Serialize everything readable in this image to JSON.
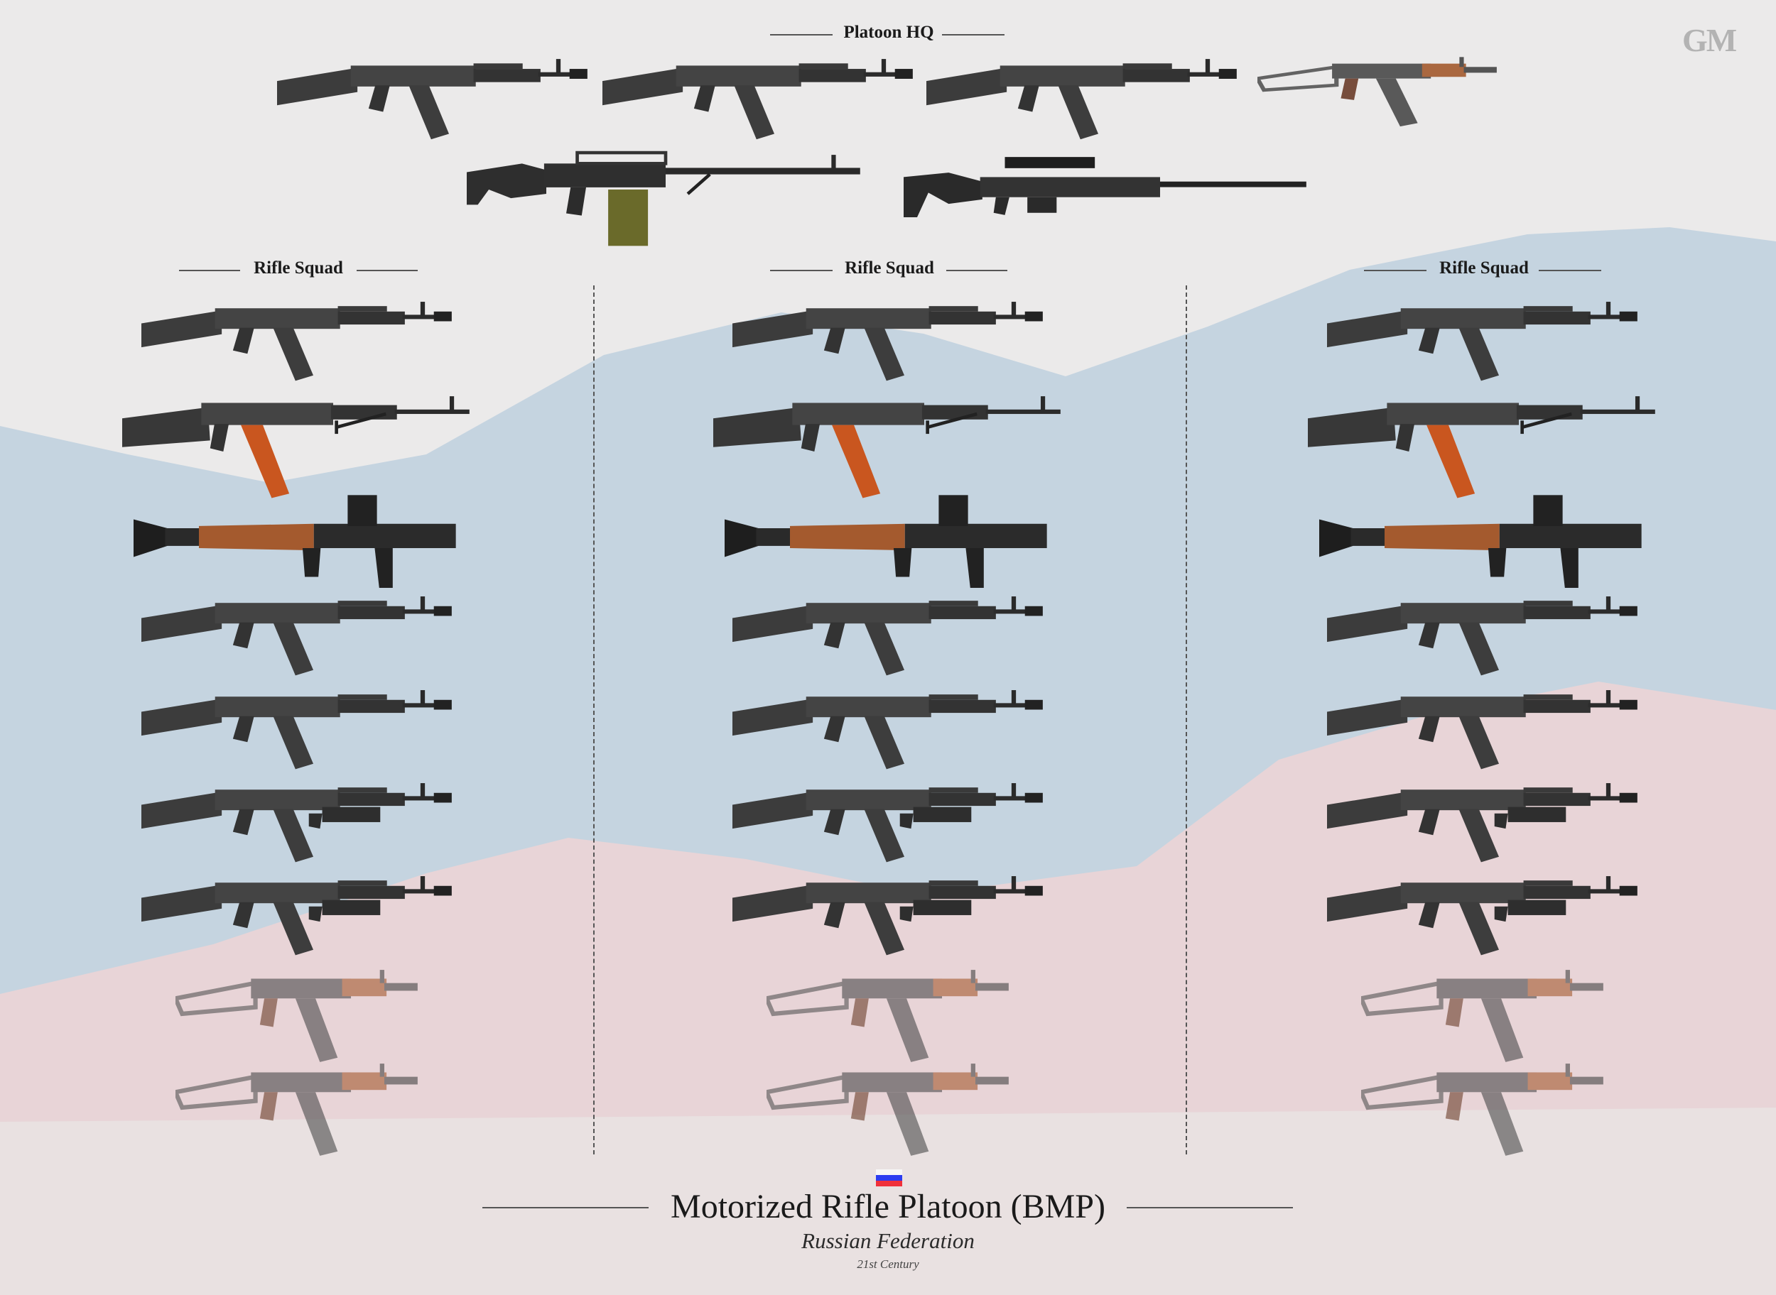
{
  "logo": "GM",
  "platoon_hq": {
    "label": "Platoon HQ",
    "weapons": [
      "ak-74m-rifle-icon",
      "ak-74m-rifle-icon",
      "ak-74m-rifle-icon",
      "aks-74u-carbine-icon",
      "pkp-machine-gun-icon",
      "svd-sniper-rifle-icon"
    ]
  },
  "squads": [
    {
      "label": "Rifle Squad"
    },
    {
      "label": "Rifle Squad"
    },
    {
      "label": "Rifle Squad"
    }
  ],
  "squad_weapons": [
    "ak-74m-rifle-icon",
    "rpk-74-light-machine-gun-icon",
    "rpg-7-launcher-icon",
    "ak-74m-rifle-icon",
    "ak-74m-rifle-icon",
    "ak-74m-grenade-launcher-icon",
    "ak-74m-grenade-launcher-icon",
    "aks-74u-carbine-icon",
    "aks-74u-carbine-icon"
  ],
  "footer": {
    "flag_icon": "russia-flag-icon",
    "title": "Motorized Rifle Platoon (BMP)",
    "subtitle": "Russian Federation",
    "era": "21st Century"
  },
  "colors": {
    "background": "#e9e8e8",
    "blue_band": "#c3d3df",
    "red_band": "#e8d3d6",
    "weapon_dark": "#3b3b3b",
    "wood": "#a45a2e",
    "orange_magazine": "#c9561f"
  }
}
